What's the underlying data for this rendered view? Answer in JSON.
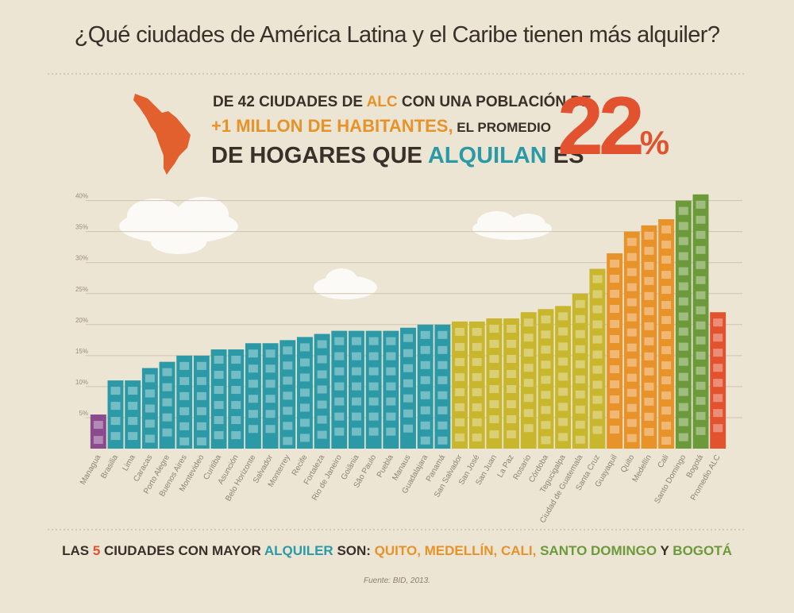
{
  "title": "¿Qué ciudades de América Latina y el Caribe tienen más alquiler?",
  "headline": {
    "line1": [
      "DE 42 CIUDADES DE ",
      "ALC",
      " CON UNA POBLACIÓN DE"
    ],
    "line2": [
      "+1 MILLON DE HABITANTES,",
      " EL PROMEDIO"
    ],
    "line3": [
      "DE HOGARES QUE ",
      "ALQUILAN",
      " ES"
    ],
    "big_number": "22",
    "big_unit": "%"
  },
  "footer": {
    "summary": [
      "LAS ",
      "5",
      " CIUDADES CON MAYOR ",
      "ALQUILER",
      " SON: ",
      "QUITO,",
      " MEDELLÍN,",
      " CALI,",
      " SANTO DOMINGO",
      " Y ",
      "BOGOTÁ"
    ],
    "source": "Fuente: BID, 2013."
  },
  "chart_data": {
    "type": "bar",
    "categories": [
      "Managua",
      "Brasilia",
      "Lima",
      "Caracas",
      "Porto Alegre",
      "Buenos Aires",
      "Montevideo",
      "Curitiba",
      "Asunción",
      "Belo Horizonte",
      "Salvador",
      "Monterrey",
      "Recife",
      "Fortaleza",
      "Rio de Janeiro",
      "Goiânia",
      "São Paulo",
      "Puebla",
      "Manaus",
      "Guadalajara",
      "Panamá",
      "San Salvador",
      "San José",
      "San Juan",
      "La Paz",
      "Rosario",
      "Córdoba",
      "Tegucigalpa",
      "Ciudad de Guatemala",
      "Santa Cruz",
      "Guayaquil",
      "Quito",
      "Medellín",
      "Cali",
      "Santo Domingo",
      "Bogotá",
      "Promedio ALC"
    ],
    "values": [
      5.5,
      11,
      11,
      13,
      14,
      15,
      15,
      16,
      16,
      17,
      17,
      17.5,
      18,
      18.5,
      19,
      19,
      19,
      19,
      19.5,
      20,
      20,
      20.5,
      20.5,
      21,
      21,
      22,
      22.5,
      23,
      25,
      29,
      31.5,
      35,
      36,
      37,
      40,
      41,
      22
    ],
    "colors": [
      "#8b4a8e",
      "#2b9aa6",
      "#2b9aa6",
      "#2b9aa6",
      "#2b9aa6",
      "#2b9aa6",
      "#2b9aa6",
      "#2b9aa6",
      "#2b9aa6",
      "#2b9aa6",
      "#2b9aa6",
      "#2b9aa6",
      "#2b9aa6",
      "#2b9aa6",
      "#2b9aa6",
      "#2b9aa6",
      "#2b9aa6",
      "#2b9aa6",
      "#2b9aa6",
      "#2b9aa6",
      "#2b9aa6",
      "#c8b62c",
      "#c8b62c",
      "#c8b62c",
      "#c8b62c",
      "#c8b62c",
      "#c8b62c",
      "#c8b62c",
      "#c8b62c",
      "#c8b62c",
      "#e8922a",
      "#e8922a",
      "#e8922a",
      "#e8922a",
      "#6c9a3b",
      "#6c9a3b",
      "#e2522e"
    ],
    "ylim": [
      0,
      42
    ],
    "yticks": [
      {
        "value": 5,
        "label": "5%"
      },
      {
        "value": 10,
        "label": "10%"
      },
      {
        "value": 15,
        "label": "15%"
      },
      {
        "value": 20,
        "label": "20%"
      },
      {
        "value": 25,
        "label": "25%"
      },
      {
        "value": 30,
        "label": "30%"
      },
      {
        "value": 35,
        "label": "35%"
      },
      {
        "value": 40,
        "label": "40%"
      }
    ],
    "grid": true
  }
}
